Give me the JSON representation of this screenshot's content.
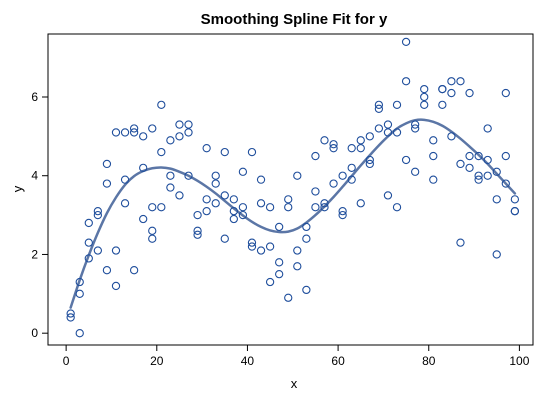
{
  "chart_data": {
    "type": "scatter",
    "title": "Smoothing Spline Fit for y",
    "xlabel": "x",
    "ylabel": "y",
    "xlim": [
      -4,
      103
    ],
    "ylim": [
      -0.3,
      7.6
    ],
    "x_ticks": [
      0,
      20,
      40,
      60,
      80,
      100
    ],
    "y_ticks": [
      0,
      2,
      4,
      6
    ],
    "grid": false,
    "legend": "none",
    "colors": {
      "points": "#1f4e9c",
      "curve": "#5b76a6",
      "frame": "#000000"
    },
    "series": [
      {
        "type": "scatter",
        "marker": "open-circle",
        "points": [
          [
            1,
            0.5
          ],
          [
            1,
            0.4
          ],
          [
            3,
            1.3
          ],
          [
            3,
            1.0
          ],
          [
            3,
            0.0
          ],
          [
            5,
            1.9
          ],
          [
            5,
            2.3
          ],
          [
            5,
            2.8
          ],
          [
            7,
            2.1
          ],
          [
            7,
            3.0
          ],
          [
            7,
            3.1
          ],
          [
            9,
            1.6
          ],
          [
            9,
            3.8
          ],
          [
            9,
            4.3
          ],
          [
            11,
            1.2
          ],
          [
            11,
            2.1
          ],
          [
            11,
            5.1
          ],
          [
            13,
            3.3
          ],
          [
            13,
            3.9
          ],
          [
            13,
            5.1
          ],
          [
            15,
            1.6
          ],
          [
            15,
            5.1
          ],
          [
            15,
            5.2
          ],
          [
            17,
            2.9
          ],
          [
            17,
            4.2
          ],
          [
            17,
            5.0
          ],
          [
            19,
            2.6
          ],
          [
            19,
            2.4
          ],
          [
            19,
            3.2
          ],
          [
            19,
            5.2
          ],
          [
            21,
            5.8
          ],
          [
            21,
            3.2
          ],
          [
            21,
            4.6
          ],
          [
            23,
            4.0
          ],
          [
            23,
            3.7
          ],
          [
            23,
            4.9
          ],
          [
            25,
            5.0
          ],
          [
            25,
            5.3
          ],
          [
            25,
            3.5
          ],
          [
            27,
            5.1
          ],
          [
            27,
            5.3
          ],
          [
            27,
            4.0
          ],
          [
            29,
            3.0
          ],
          [
            29,
            2.6
          ],
          [
            29,
            2.5
          ],
          [
            31,
            3.1
          ],
          [
            31,
            3.4
          ],
          [
            31,
            4.7
          ],
          [
            33,
            3.3
          ],
          [
            33,
            3.8
          ],
          [
            33,
            4.0
          ],
          [
            35,
            4.6
          ],
          [
            35,
            2.4
          ],
          [
            35,
            3.5
          ],
          [
            37,
            3.4
          ],
          [
            37,
            2.9
          ],
          [
            37,
            3.1
          ],
          [
            39,
            3.2
          ],
          [
            39,
            3.0
          ],
          [
            39,
            4.1
          ],
          [
            41,
            2.3
          ],
          [
            41,
            4.6
          ],
          [
            41,
            2.2
          ],
          [
            43,
            3.3
          ],
          [
            43,
            2.1
          ],
          [
            43,
            3.9
          ],
          [
            45,
            3.2
          ],
          [
            45,
            2.2
          ],
          [
            45,
            1.3
          ],
          [
            47,
            2.7
          ],
          [
            47,
            1.5
          ],
          [
            47,
            1.8
          ],
          [
            49,
            3.2
          ],
          [
            49,
            3.4
          ],
          [
            49,
            0.9
          ],
          [
            51,
            1.7
          ],
          [
            51,
            2.1
          ],
          [
            51,
            4.0
          ],
          [
            53,
            2.4
          ],
          [
            53,
            2.7
          ],
          [
            53,
            1.1
          ],
          [
            55,
            3.2
          ],
          [
            55,
            3.6
          ],
          [
            55,
            4.5
          ],
          [
            57,
            3.2
          ],
          [
            57,
            3.3
          ],
          [
            57,
            4.9
          ],
          [
            59,
            3.8
          ],
          [
            59,
            4.7
          ],
          [
            59,
            4.8
          ],
          [
            61,
            3.0
          ],
          [
            61,
            3.1
          ],
          [
            61,
            4.0
          ],
          [
            63,
            4.2
          ],
          [
            63,
            3.9
          ],
          [
            63,
            4.7
          ],
          [
            65,
            4.9
          ],
          [
            65,
            4.7
          ],
          [
            65,
            3.3
          ],
          [
            67,
            5.0
          ],
          [
            67,
            4.3
          ],
          [
            67,
            4.4
          ],
          [
            69,
            5.8
          ],
          [
            69,
            5.7
          ],
          [
            69,
            5.2
          ],
          [
            71,
            5.1
          ],
          [
            71,
            5.3
          ],
          [
            71,
            3.5
          ],
          [
            73,
            5.8
          ],
          [
            73,
            3.2
          ],
          [
            73,
            5.1
          ],
          [
            75,
            7.4
          ],
          [
            75,
            6.4
          ],
          [
            75,
            4.4
          ],
          [
            77,
            5.3
          ],
          [
            77,
            5.2
          ],
          [
            77,
            4.1
          ],
          [
            79,
            6.2
          ],
          [
            79,
            6.0
          ],
          [
            79,
            5.8
          ],
          [
            81,
            4.5
          ],
          [
            81,
            3.9
          ],
          [
            81,
            4.9
          ],
          [
            83,
            6.2
          ],
          [
            83,
            6.2
          ],
          [
            83,
            5.8
          ],
          [
            85,
            6.4
          ],
          [
            85,
            6.1
          ],
          [
            85,
            5.0
          ],
          [
            87,
            6.4
          ],
          [
            87,
            4.3
          ],
          [
            87,
            2.3
          ],
          [
            89,
            6.1
          ],
          [
            89,
            4.2
          ],
          [
            89,
            4.5
          ],
          [
            91,
            4.5
          ],
          [
            91,
            3.9
          ],
          [
            91,
            4.0
          ],
          [
            93,
            5.2
          ],
          [
            93,
            4.4
          ],
          [
            93,
            4.0
          ],
          [
            95,
            3.4
          ],
          [
            95,
            4.1
          ],
          [
            95,
            2.0
          ],
          [
            97,
            6.1
          ],
          [
            97,
            4.5
          ],
          [
            97,
            3.8
          ],
          [
            99,
            3.1
          ],
          [
            99,
            3.1
          ],
          [
            99,
            3.4
          ]
        ]
      },
      {
        "type": "line",
        "smooth": true,
        "points": [
          [
            1,
            0.65
          ],
          [
            3,
            1.35
          ],
          [
            5,
            1.98
          ],
          [
            7,
            2.55
          ],
          [
            9,
            3.05
          ],
          [
            11,
            3.45
          ],
          [
            13,
            3.77
          ],
          [
            15,
            3.99
          ],
          [
            17,
            4.12
          ],
          [
            19,
            4.19
          ],
          [
            21,
            4.21
          ],
          [
            23,
            4.18
          ],
          [
            25,
            4.1
          ],
          [
            27,
            4.0
          ],
          [
            29,
            3.87
          ],
          [
            31,
            3.72
          ],
          [
            33,
            3.55
          ],
          [
            35,
            3.36
          ],
          [
            37,
            3.17
          ],
          [
            39,
            2.99
          ],
          [
            41,
            2.83
          ],
          [
            43,
            2.7
          ],
          [
            45,
            2.61
          ],
          [
            47,
            2.57
          ],
          [
            49,
            2.58
          ],
          [
            51,
            2.66
          ],
          [
            53,
            2.81
          ],
          [
            55,
            3.0
          ],
          [
            57,
            3.22
          ],
          [
            59,
            3.46
          ],
          [
            61,
            3.72
          ],
          [
            63,
            3.99
          ],
          [
            65,
            4.26
          ],
          [
            67,
            4.52
          ],
          [
            69,
            4.77
          ],
          [
            71,
            5.0
          ],
          [
            73,
            5.2
          ],
          [
            75,
            5.33
          ],
          [
            77,
            5.41
          ],
          [
            79,
            5.42
          ],
          [
            81,
            5.37
          ],
          [
            83,
            5.27
          ],
          [
            85,
            5.12
          ],
          [
            87,
            4.94
          ],
          [
            89,
            4.74
          ],
          [
            91,
            4.53
          ],
          [
            93,
            4.3
          ],
          [
            95,
            4.05
          ],
          [
            97,
            3.8
          ],
          [
            99,
            3.55
          ]
        ]
      }
    ]
  }
}
